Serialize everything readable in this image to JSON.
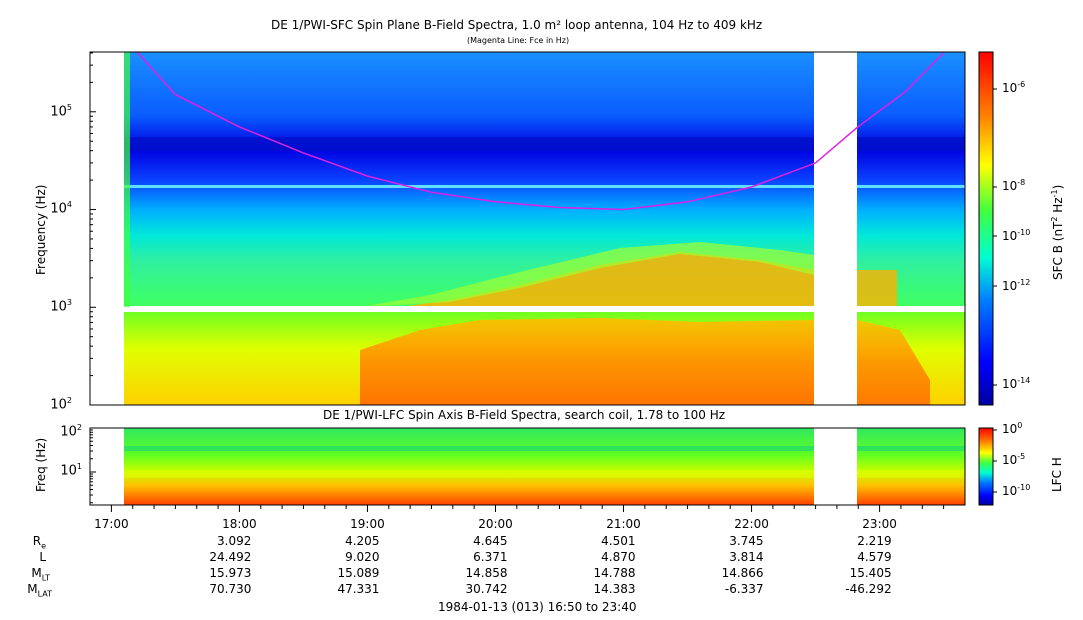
{
  "chart_data": [
    {
      "type": "heatmap",
      "title": "DE 1/PWI-SFC  Spin Plane B-Field Spectra, 1.0 m² loop antenna, 104 Hz to 409 kHz",
      "subtitle": "(Magenta Line: Fce in Hz)",
      "ylabel": "Frequency (Hz)",
      "yscale": "log",
      "ylim": [
        100,
        409000
      ],
      "ytick_labels": [
        "10",
        "10",
        "10",
        "10"
      ],
      "ytick_exps": [
        "2",
        "3",
        "4",
        "5"
      ],
      "colorbar": {
        "label": "SFC B (nT",
        "label_tail": " Hz",
        "scale": "log",
        "range": [
          1e-15,
          1e-05
        ],
        "tick_bases": [
          "10",
          "10",
          "10",
          "10",
          "10"
        ],
        "tick_exps": [
          "-6",
          "-8",
          "-10",
          "-12",
          "-14"
        ]
      },
      "data_gaps_hours": [
        [
          17.0,
          17.12
        ],
        [
          22.5,
          22.82
        ]
      ],
      "fce_line_hz": [
        {
          "t": 17.2,
          "f": 409000
        },
        {
          "t": 17.5,
          "f": 150000
        },
        {
          "t": 18.0,
          "f": 70000
        },
        {
          "t": 18.5,
          "f": 38000
        },
        {
          "t": 19.0,
          "f": 22000
        },
        {
          "t": 19.5,
          "f": 15000
        },
        {
          "t": 20.0,
          "f": 12000
        },
        {
          "t": 20.5,
          "f": 10500
        },
        {
          "t": 21.0,
          "f": 10000
        },
        {
          "t": 21.5,
          "f": 12000
        },
        {
          "t": 22.0,
          "f": 17000
        },
        {
          "t": 22.5,
          "f": 30000
        },
        {
          "t": 22.83,
          "f": 70000
        },
        {
          "t": 23.2,
          "f": 160000
        },
        {
          "t": 23.5,
          "f": 400000
        }
      ]
    },
    {
      "type": "heatmap",
      "title": "DE 1/PWI-LFC  Spin Axis B-Field Spectra, search coil, 1.78 to 100 Hz",
      "ylabel": "Freq (Hz)",
      "yscale": "log",
      "ylim": [
        1.78,
        100
      ],
      "ytick_labels": [
        "10",
        "10"
      ],
      "ytick_exps": [
        "2",
        "1"
      ],
      "colorbar": {
        "label": "LFC H",
        "scale": "log",
        "range": [
          1e-12,
          1
        ],
        "tick_bases": [
          "10",
          "10",
          "10"
        ],
        "tick_exps": [
          "0",
          "-5",
          "-10"
        ]
      }
    }
  ],
  "xaxis": {
    "tick_labels": [
      "17:00",
      "18:00",
      "19:00",
      "20:00",
      "21:00",
      "22:00",
      "23:00"
    ],
    "tick_hours": [
      17,
      18,
      19,
      20,
      21,
      22,
      23
    ],
    "range_hours": [
      16.833,
      23.667
    ]
  },
  "ephemeris": {
    "labels": [
      "R",
      "L",
      "M",
      "M"
    ],
    "label_subs": [
      "e",
      "",
      "LT",
      "LAT"
    ],
    "rows": [
      [
        "3.092",
        "4.205",
        "4.645",
        "4.501",
        "3.745",
        "2.219"
      ],
      [
        "24.492",
        "9.020",
        "6.371",
        "4.870",
        "3.814",
        "4.579"
      ],
      [
        "15.973",
        "15.089",
        "14.858",
        "14.788",
        "14.866",
        "15.405"
      ],
      [
        "70.730",
        "47.331",
        "30.742",
        "14.383",
        "-6.337",
        "-46.292"
      ]
    ]
  },
  "footer": "1984-01-13 (013) 16:50 to 23:40"
}
